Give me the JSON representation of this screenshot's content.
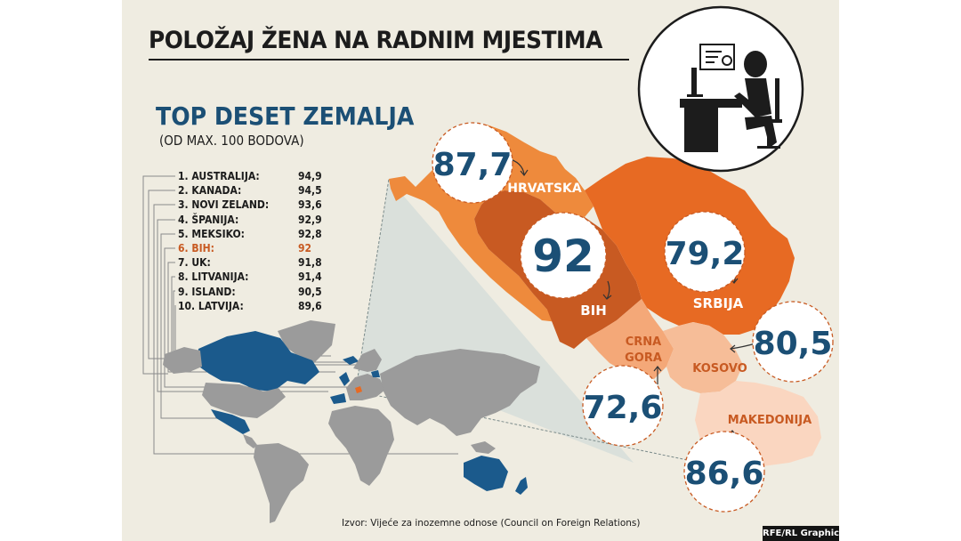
{
  "title": "POLOŽAJ ŽENA NA RADNIM MJESTIMA",
  "subtitle": "TOP DESET ZEMALJA",
  "subnote": "(OD MAX. 100 BODOVA)",
  "ranking": [
    {
      "label": "1. AUSTRALIJA:",
      "value": "94,9"
    },
    {
      "label": "2. KANADA:",
      "value": "94,5"
    },
    {
      "label": "3. NOVI ZELAND:",
      "value": "93,6"
    },
    {
      "label": "4. ŠPANIJA:",
      "value": "92,9"
    },
    {
      "label": "5. MEKSIKO:",
      "value": "92,8"
    },
    {
      "label": "6. BIH:",
      "value": "92"
    },
    {
      "label": "7. UK:",
      "value": "91,8"
    },
    {
      "label": "8. LITVANIJA:",
      "value": "91,4"
    },
    {
      "label": "9. ISLAND:",
      "value": "90,5"
    },
    {
      "label": "10. LATVIJA:",
      "value": "89,6"
    }
  ],
  "regions": {
    "hrvatska": {
      "name": "HRVATSKA",
      "score": "87,7"
    },
    "bih": {
      "name": "BIH",
      "score": "92"
    },
    "srbija": {
      "name": "SRBIJA",
      "score": "79,2"
    },
    "crna_gora": {
      "name_line1": "CRNA",
      "name_line2": "GORA",
      "score": "72,6"
    },
    "kosovo": {
      "name": "KOSOVO",
      "score": "80,5"
    },
    "makedonija": {
      "name": "MAKEDONIJA",
      "score": "86,6"
    }
  },
  "colors": {
    "navy": "#1b4f75",
    "highlight": "#c85a22",
    "hrvatska": "#ee8a3c",
    "bih": "#c85a22",
    "srbija": "#e76a23",
    "crna_gora": "#f4a878",
    "kosovo": "#f6bd98",
    "makedonija": "#fad6c0"
  },
  "source": "Izvor: Vijeće za inozemne odnose (Council on Foreign Relations)",
  "credit": "RFE/RL Graphics",
  "icons": [
    "woman-at-desk-icon",
    "certificate-icon",
    "rferl-logo-icon"
  ]
}
